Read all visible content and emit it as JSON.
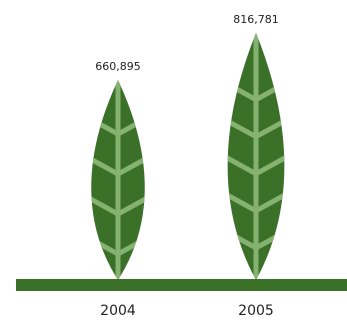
{
  "chart_data": {
    "type": "bar",
    "categories": [
      "2004",
      "2005"
    ],
    "values": [
      660895,
      816781
    ],
    "value_labels": [
      "660,895",
      "816,781"
    ],
    "title": "",
    "xlabel": "",
    "ylabel": "",
    "ylim": [
      0,
      816781
    ],
    "grid": false,
    "legend": "none",
    "mark": "leaf"
  },
  "colors": {
    "leaf": "#3a7028",
    "vein": "#86b271",
    "ground": "#3a7028"
  }
}
